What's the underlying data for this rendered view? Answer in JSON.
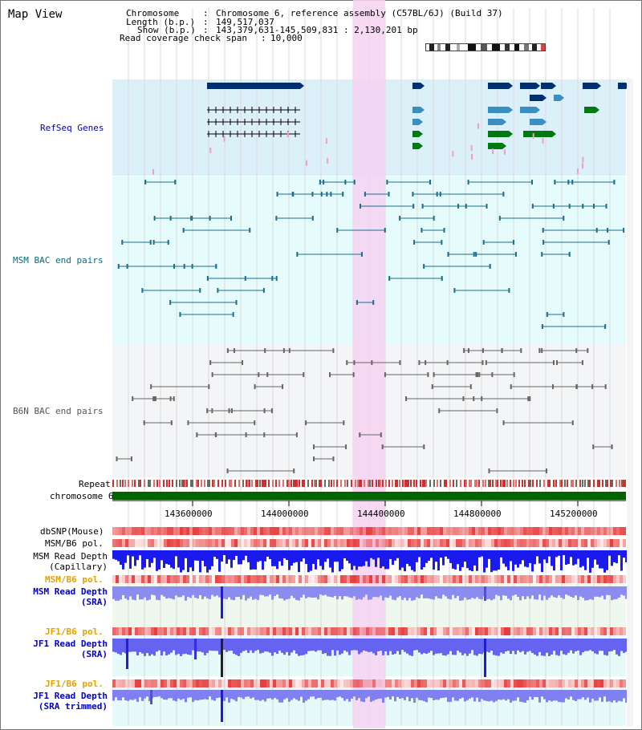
{
  "app_title": "Map View",
  "header": {
    "chromosome_label": "Chromosome",
    "chromosome_value": "Chromosome 6, reference assembly (C57BL/6J) (Build 37)",
    "length_label": "Length (b.p.)",
    "length_value": "149,517,037",
    "show_label": "Show (b.p.)",
    "show_value": "143,379,631-145,509,831 : 2,130,201 bp",
    "coverage_label": "Read coverage check span",
    "coverage_value": "10,000"
  },
  "tracks": {
    "refseq": "RefSeq Genes",
    "msm_bac": "MSM BAC end pairs",
    "b6n_bac": "B6N BAC end pairs",
    "repeat": "Repeat",
    "chromosome": "chromosome 6",
    "dbsnp": "dbSNP(Mouse)",
    "msm_b6_pol_1": "MSM/B6 pol.",
    "msm_read_depth_cap_1": "MSM Read Depth",
    "msm_read_depth_cap_2": "(Capillary)",
    "msm_b6_pol_2": "MSM/B6 pol.",
    "msm_read_depth_sra_1": "MSM Read Depth",
    "msm_read_depth_sra_2": "(SRA)",
    "jf1_b6_pol_1": "JF1/B6 pol.",
    "jf1_read_depth_sra_1": "JF1 Read Depth",
    "jf1_read_depth_sra_2": "(SRA)",
    "jf1_b6_pol_2": "JF1/B6 pol.",
    "jf1_read_depth_trim_1": "JF1 Read Depth",
    "jf1_read_depth_trim_2": "(SRA trimmed)"
  },
  "axis": {
    "ticks": [
      "143600000",
      "144000000",
      "144400000",
      "144800000",
      "145200000"
    ]
  },
  "colors": {
    "refseq_bg": "#dcf0fa",
    "msm_bg": "#e6fcfc",
    "b6n_bg": "#f4f6f8",
    "highlight": "#f6d2f2",
    "chromosome": "#006400",
    "gene_dark": "#003070",
    "gene_mid": "#3a8ec0",
    "gene_green": "#007a10",
    "depth_blue": "#1a1aee",
    "label_blue": "#0000cc",
    "label_teal": "#007080",
    "label_orange": "#e8a000"
  }
}
